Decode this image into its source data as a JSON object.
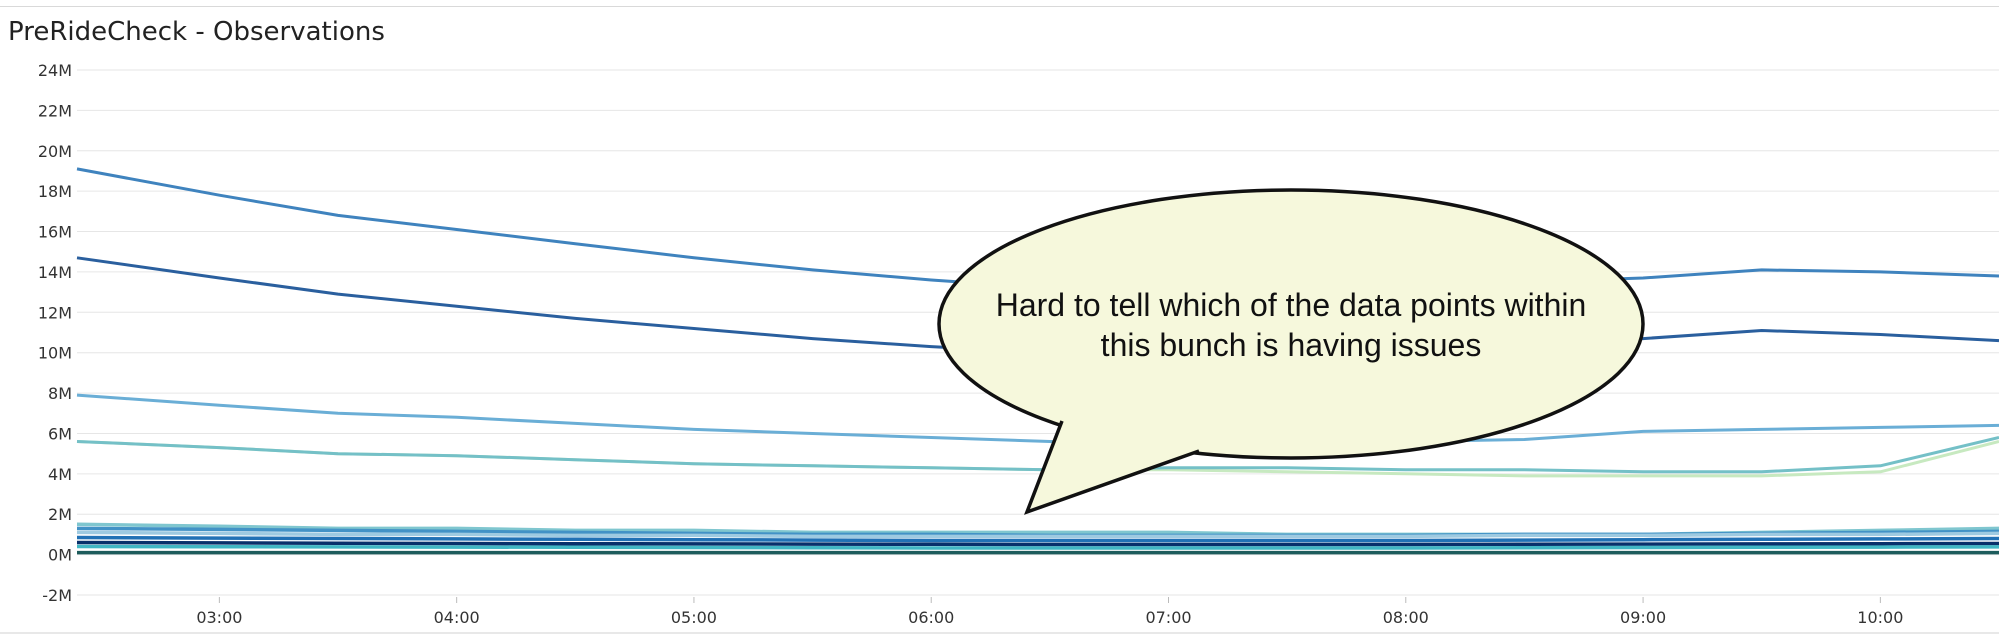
{
  "panel": {
    "title": "PreRideCheck - Observations"
  },
  "annotation": {
    "line1": "Hard to tell which of the data points within",
    "line2": "this bunch is having issues",
    "fill_color": "#f6f8dc"
  },
  "chart_data": {
    "type": "line",
    "title": "PreRideCheck - Observations",
    "xlabel": "",
    "ylabel": "",
    "x_ticks": [
      "03:00",
      "04:00",
      "05:00",
      "06:00",
      "07:00",
      "08:00",
      "09:00",
      "10:00"
    ],
    "y_ticks": [
      "-2M",
      "0M",
      "2M",
      "4M",
      "6M",
      "8M",
      "10M",
      "12M",
      "14M",
      "16M",
      "18M",
      "20M",
      "22M",
      "24M"
    ],
    "ylim": [
      -2000000,
      24000000
    ],
    "xlim": [
      "02:24",
      "10:30"
    ],
    "grid": true,
    "legend": "none",
    "x": [
      "02:24",
      "03:00",
      "03:30",
      "04:00",
      "04:30",
      "05:00",
      "05:30",
      "06:00",
      "06:30",
      "07:00",
      "07:30",
      "08:00",
      "08:30",
      "09:00",
      "09:30",
      "10:00",
      "10:30"
    ],
    "series": [
      {
        "color": "#3f83be",
        "values": [
          19100000,
          17800000,
          16800000,
          16100000,
          15400000,
          14700000,
          14100000,
          13600000,
          13200000,
          13000000,
          13100000,
          13300000,
          13500000,
          13700000,
          14100000,
          14000000,
          13800000
        ]
      },
      {
        "color": "#2a5f9e",
        "values": [
          14700000,
          13700000,
          12900000,
          12300000,
          11700000,
          11200000,
          10700000,
          10300000,
          10000000,
          9900000,
          10100000,
          10300000,
          10500000,
          10700000,
          11100000,
          10900000,
          10600000
        ]
      },
      {
        "color": "#6aaed6",
        "values": [
          7900000,
          7400000,
          7000000,
          6800000,
          6500000,
          6200000,
          6000000,
          5800000,
          5600000,
          5500000,
          5500000,
          5600000,
          5700000,
          6100000,
          6200000,
          6300000,
          6400000
        ]
      },
      {
        "color": "#c7e9c0",
        "values": [
          5600000,
          5300000,
          5000000,
          4900000,
          4700000,
          4500000,
          4400000,
          4300000,
          4200000,
          4200000,
          4100000,
          4000000,
          3900000,
          3900000,
          3900000,
          4100000,
          5600000
        ]
      },
      {
        "color": "#74c0c7",
        "values": [
          5600000,
          5300000,
          5000000,
          4900000,
          4700000,
          4500000,
          4400000,
          4300000,
          4200000,
          4300000,
          4300000,
          4200000,
          4200000,
          4100000,
          4100000,
          4400000,
          5800000
        ]
      },
      {
        "color": "#7fc6cf",
        "values": [
          1500000,
          1400000,
          1300000,
          1300000,
          1200000,
          1200000,
          1100000,
          1100000,
          1100000,
          1100000,
          1000000,
          1000000,
          1000000,
          1000000,
          1100000,
          1200000,
          1300000
        ]
      },
      {
        "color": "#4292c6",
        "values": [
          1300000,
          1250000,
          1200000,
          1150000,
          1100000,
          1050000,
          1000000,
          1000000,
          950000,
          950000,
          950000,
          950000,
          1000000,
          1000000,
          1050000,
          1100000,
          1150000
        ]
      },
      {
        "color": "#9ecae1",
        "values": [
          1100000,
          1050000,
          1000000,
          1000000,
          950000,
          950000,
          900000,
          900000,
          900000,
          900000,
          900000,
          900000,
          950000,
          950000,
          1000000,
          1000000,
          1050000
        ]
      },
      {
        "color": "#2171b5",
        "values": [
          850000,
          820000,
          800000,
          780000,
          760000,
          740000,
          720000,
          700000,
          700000,
          700000,
          700000,
          700000,
          720000,
          740000,
          760000,
          780000,
          800000
        ]
      },
      {
        "color": "#08306b",
        "values": [
          600000,
          580000,
          560000,
          550000,
          540000,
          530000,
          520000,
          510000,
          500000,
          500000,
          500000,
          500000,
          510000,
          520000,
          530000,
          540000,
          550000
        ]
      },
      {
        "color": "#41b6c4",
        "values": [
          400000,
          390000,
          380000,
          370000,
          360000,
          350000,
          340000,
          330000,
          330000,
          330000,
          330000,
          330000,
          340000,
          350000,
          360000,
          370000,
          380000
        ]
      },
      {
        "color": "#1d5c5c",
        "values": [
          100000,
          100000,
          100000,
          100000,
          100000,
          100000,
          100000,
          100000,
          100000,
          100000,
          100000,
          100000,
          100000,
          100000,
          100000,
          100000,
          100000
        ]
      }
    ]
  }
}
